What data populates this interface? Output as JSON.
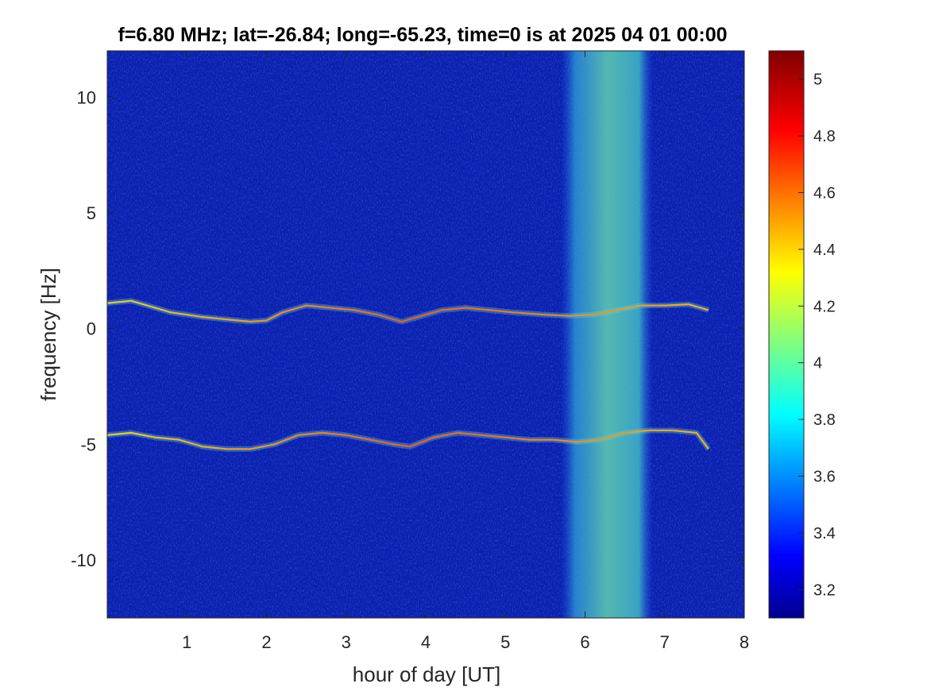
{
  "chart_data": {
    "type": "heatmap",
    "title": "f=6.80 MHz;  lat=-26.84; long=-65.23, time=0 is at 2025 04 01 00:00",
    "xlabel": "hour of day [UT]",
    "ylabel": "frequency [Hz]",
    "xlim": [
      0,
      8
    ],
    "ylim": [
      -12.5,
      12
    ],
    "xticks": [
      1,
      2,
      3,
      4,
      5,
      6,
      7,
      8
    ],
    "xtick_labels": [
      "1",
      "2",
      "3",
      "4",
      "5",
      "6",
      "7",
      "8"
    ],
    "yticks": [
      10,
      5,
      0,
      -5,
      -10
    ],
    "ytick_labels": [
      "10",
      "5",
      "0",
      "-5",
      "-10"
    ],
    "colormap": "jet",
    "background_color": "#0a1fb0",
    "colorbar": {
      "range": [
        3.1,
        5.1
      ],
      "ticks": [
        5,
        4.8,
        4.6,
        4.4,
        4.2,
        4,
        3.8,
        3.6,
        3.4,
        3.2
      ],
      "tick_labels": [
        "5",
        "4.8",
        "4.6",
        "4.4",
        "4.2",
        "4",
        "3.8",
        "3.6",
        "3.4",
        "3.2"
      ]
    },
    "noise_band": {
      "x_range": [
        5.7,
        6.85
      ],
      "description_value": 3.9
    },
    "traces": [
      {
        "id": "upper-trace",
        "x": [
          0,
          0.3,
          0.6,
          0.8,
          1.0,
          1.2,
          1.5,
          1.8,
          2.0,
          2.2,
          2.5,
          2.8,
          3.1,
          3.4,
          3.7,
          3.9,
          4.2,
          4.5,
          4.8,
          5.1,
          5.5,
          5.8,
          6.1,
          6.4,
          6.7,
          7.0,
          7.3,
          7.55
        ],
        "y": [
          1.1,
          1.2,
          0.9,
          0.7,
          0.6,
          0.5,
          0.4,
          0.3,
          0.35,
          0.7,
          1.0,
          0.9,
          0.8,
          0.6,
          0.3,
          0.5,
          0.8,
          0.9,
          0.8,
          0.7,
          0.6,
          0.55,
          0.6,
          0.8,
          1.0,
          1.0,
          1.05,
          0.8
        ]
      },
      {
        "id": "lower-trace",
        "x": [
          0,
          0.3,
          0.6,
          0.9,
          1.2,
          1.5,
          1.8,
          2.1,
          2.4,
          2.7,
          3.0,
          3.3,
          3.6,
          3.8,
          4.1,
          4.4,
          4.7,
          5.0,
          5.3,
          5.6,
          5.9,
          6.2,
          6.5,
          6.8,
          7.1,
          7.4,
          7.55
        ],
        "y": [
          -4.6,
          -4.5,
          -4.7,
          -4.8,
          -5.1,
          -5.2,
          -5.2,
          -5.0,
          -4.6,
          -4.5,
          -4.6,
          -4.8,
          -5.0,
          -5.1,
          -4.7,
          -4.5,
          -4.6,
          -4.7,
          -4.8,
          -4.8,
          -4.9,
          -4.8,
          -4.5,
          -4.4,
          -4.4,
          -4.5,
          -5.2
        ]
      }
    ]
  }
}
